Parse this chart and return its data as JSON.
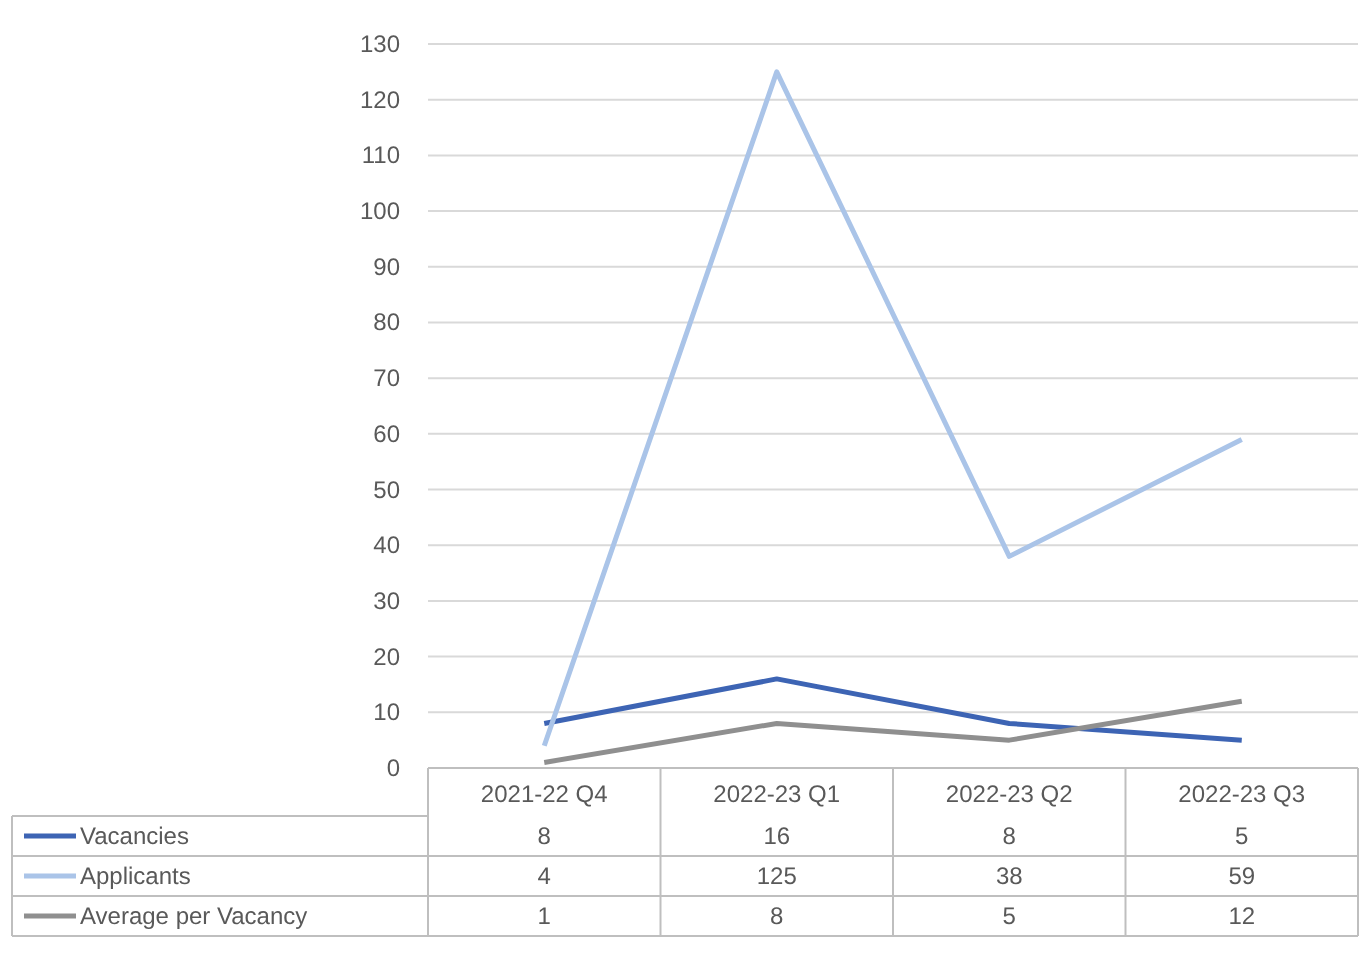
{
  "chart_data": {
    "type": "line",
    "categories": [
      "2021-22 Q4",
      "2022-23 Q1",
      "2022-23 Q2",
      "2022-23 Q3"
    ],
    "series": [
      {
        "name": "Vacancies",
        "color": "#3d64b4",
        "values": [
          8,
          16,
          8,
          5
        ]
      },
      {
        "name": "Applicants",
        "color": "#aac4e8",
        "values": [
          4,
          125,
          38,
          59
        ]
      },
      {
        "name": "Average per Vacancy",
        "color": "#8f8f8f",
        "values": [
          1,
          8,
          5,
          12
        ]
      }
    ],
    "ylim": [
      0,
      130
    ],
    "yticks": [
      0,
      10,
      20,
      30,
      40,
      50,
      60,
      70,
      80,
      90,
      100,
      110,
      120,
      130
    ],
    "grid": "y",
    "legend": "bottom",
    "data_labels": true,
    "marker": "none",
    "line_style": "solid"
  }
}
